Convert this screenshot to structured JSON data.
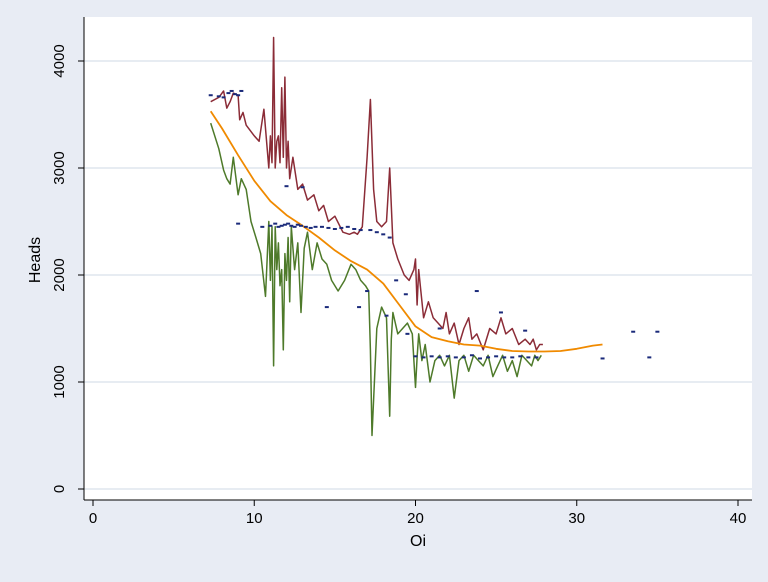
{
  "chart_data": {
    "type": "line",
    "title": "",
    "xlabel": "Oi",
    "ylabel": "Heads",
    "xlim": [
      0,
      40
    ],
    "ylim": [
      0,
      4300
    ],
    "xticks": [
      0,
      10,
      20,
      30,
      40
    ],
    "yticks": [
      0,
      1000,
      2000,
      3000,
      4000
    ],
    "grid": "horizontal",
    "colors": {
      "background": "#e8ecf4",
      "plot_area": "#ffffff",
      "grid": "#dfe5ee",
      "upper": "#8b2c37",
      "lower": "#4e7a2a",
      "fit": "#f08a00",
      "points": "#1a2a7a"
    },
    "series": [
      {
        "role": "upper-band",
        "x": [
          7.3,
          7.8,
          8.1,
          8.3,
          8.5,
          8.7,
          9.0,
          9.1,
          9.3,
          9.5,
          10.0,
          10.3,
          10.6,
          10.9,
          11.0,
          11.1,
          11.2,
          11.3,
          11.4,
          11.5,
          11.6,
          11.7,
          11.8,
          11.9,
          12.0,
          12.1,
          12.2,
          12.4,
          12.7,
          13.0,
          13.3,
          13.7,
          14.0,
          14.3,
          14.6,
          15.0,
          15.5,
          15.9,
          16.2,
          16.4,
          16.7,
          17.0,
          17.2,
          17.4,
          17.6,
          17.9,
          18.2,
          18.4,
          18.6,
          18.9,
          19.3,
          19.6,
          19.9,
          20.0,
          20.1,
          20.2,
          20.3,
          20.5,
          20.8,
          21.1,
          21.4,
          21.7,
          21.9,
          22.1,
          22.4,
          22.7,
          23.0,
          23.3,
          23.5,
          23.8,
          24.2,
          24.6,
          25.0,
          25.3,
          25.6,
          26.0,
          26.4,
          26.8,
          27.1,
          27.3,
          27.5,
          27.7,
          27.9
        ],
        "y": [
          3620,
          3660,
          3720,
          3560,
          3620,
          3700,
          3680,
          3450,
          3520,
          3400,
          3300,
          3250,
          3550,
          3000,
          3300,
          3050,
          4220,
          3000,
          3250,
          3300,
          3050,
          3750,
          3100,
          3850,
          3000,
          3250,
          2900,
          3100,
          2800,
          2850,
          2700,
          2750,
          2600,
          2650,
          2500,
          2550,
          2400,
          2380,
          2400,
          2380,
          2450,
          3100,
          3640,
          2800,
          2500,
          2450,
          2500,
          3000,
          2300,
          2150,
          2000,
          1950,
          2050,
          2150,
          1720,
          2050,
          1900,
          1600,
          1750,
          1600,
          1550,
          1500,
          1650,
          1450,
          1550,
          1350,
          1500,
          1600,
          1400,
          1450,
          1300,
          1500,
          1450,
          1600,
          1450,
          1500,
          1350,
          1400,
          1350,
          1400,
          1300,
          1350,
          1350
        ]
      },
      {
        "role": "lower-band",
        "x": [
          7.3,
          7.8,
          8.1,
          8.3,
          8.5,
          8.7,
          9.0,
          9.2,
          9.5,
          9.8,
          10.1,
          10.4,
          10.7,
          10.9,
          11.0,
          11.1,
          11.2,
          11.3,
          11.4,
          11.5,
          11.6,
          11.7,
          11.8,
          11.9,
          12.0,
          12.1,
          12.2,
          12.3,
          12.5,
          12.7,
          12.9,
          13.1,
          13.3,
          13.6,
          13.9,
          14.2,
          14.5,
          14.8,
          15.2,
          15.6,
          16.0,
          16.3,
          16.6,
          16.9,
          17.1,
          17.2,
          17.3,
          17.6,
          17.9,
          18.2,
          18.4,
          18.5,
          18.6,
          18.9,
          19.2,
          19.5,
          19.8,
          20.0,
          20.1,
          20.2,
          20.4,
          20.6,
          20.9,
          21.2,
          21.5,
          21.8,
          22.1,
          22.4,
          22.7,
          23.0,
          23.3,
          23.6,
          23.9,
          24.2,
          24.5,
          24.8,
          25.1,
          25.4,
          25.7,
          26.0,
          26.3,
          26.6,
          26.9,
          27.2,
          27.4,
          27.6,
          27.8
        ],
        "y": [
          3420,
          3180,
          2980,
          2900,
          2850,
          3100,
          2750,
          2900,
          2800,
          2500,
          2350,
          2200,
          1800,
          2500,
          1950,
          2450,
          1150,
          2450,
          2050,
          2300,
          1900,
          2050,
          1300,
          2200,
          1950,
          2350,
          1750,
          2450,
          2050,
          2300,
          1650,
          2250,
          2400,
          2050,
          2300,
          2150,
          2100,
          1950,
          1850,
          1950,
          2100,
          2050,
          1950,
          1900,
          1850,
          1300,
          500,
          1500,
          1700,
          1600,
          680,
          1400,
          1650,
          1450,
          1500,
          1550,
          1450,
          950,
          1230,
          1450,
          1200,
          1350,
          1000,
          1200,
          1250,
          1150,
          1250,
          850,
          1200,
          1250,
          1100,
          1250,
          1200,
          1150,
          1250,
          1050,
          1150,
          1250,
          1100,
          1200,
          1050,
          1250,
          1200,
          1150,
          1250,
          1200,
          1250
        ]
      },
      {
        "role": "fitted-curve",
        "x": [
          7.3,
          8,
          9,
          10,
          11,
          12,
          13,
          14,
          15,
          16,
          17,
          18,
          19,
          20,
          21,
          22,
          23,
          24,
          25,
          26,
          27,
          28,
          29,
          30,
          31,
          31.6
        ],
        "y": [
          3530,
          3370,
          3120,
          2880,
          2690,
          2560,
          2460,
          2350,
          2230,
          2130,
          2050,
          1920,
          1720,
          1520,
          1420,
          1380,
          1350,
          1340,
          1310,
          1290,
          1285,
          1285,
          1290,
          1310,
          1340,
          1350
        ]
      },
      {
        "role": "observations",
        "type": "scatter",
        "x": [
          7.3,
          7.8,
          8.1,
          8.4,
          8.6,
          8.8,
          9.0,
          9.2,
          9.0,
          10.5,
          11.0,
          11.3,
          11.5,
          11.7,
          11.9,
          12.1,
          12.3,
          12.5,
          12.7,
          12.9,
          13.2,
          13.5,
          13.8,
          14.2,
          14.6,
          15.0,
          15.4,
          15.8,
          16.2,
          16.6,
          17.2,
          17.6,
          18.0,
          18.4,
          18.8,
          19.4,
          20.0,
          20.5,
          21.0,
          21.5,
          22.0,
          22.5,
          23.0,
          23.5,
          24.0,
          24.5,
          25.0,
          25.5,
          26.0,
          26.5,
          27.0,
          27.5,
          31.6,
          33.5,
          34.5,
          35.0,
          12.0,
          13.0,
          14.5,
          16.5,
          17.0,
          18.2,
          19.5,
          21.5,
          23.8,
          25.3,
          26.8
        ],
        "y": [
          3680,
          3670,
          3660,
          3700,
          3720,
          3690,
          3680,
          3720,
          2480,
          2450,
          2460,
          2480,
          2450,
          2460,
          2470,
          2480,
          2460,
          2450,
          2470,
          2460,
          2450,
          2440,
          2450,
          2450,
          2440,
          2430,
          2440,
          2450,
          2430,
          2420,
          2420,
          2400,
          2380,
          2350,
          1950,
          1820,
          1240,
          1230,
          1240,
          1230,
          1240,
          1230,
          1230,
          1250,
          1220,
          1230,
          1240,
          1230,
          1230,
          1240,
          1230,
          1230,
          1220,
          1470,
          1230,
          1470,
          2830,
          2820,
          1700,
          1700,
          1850,
          1620,
          1450,
          1500,
          1850,
          1650,
          1480
        ]
      }
    ]
  }
}
